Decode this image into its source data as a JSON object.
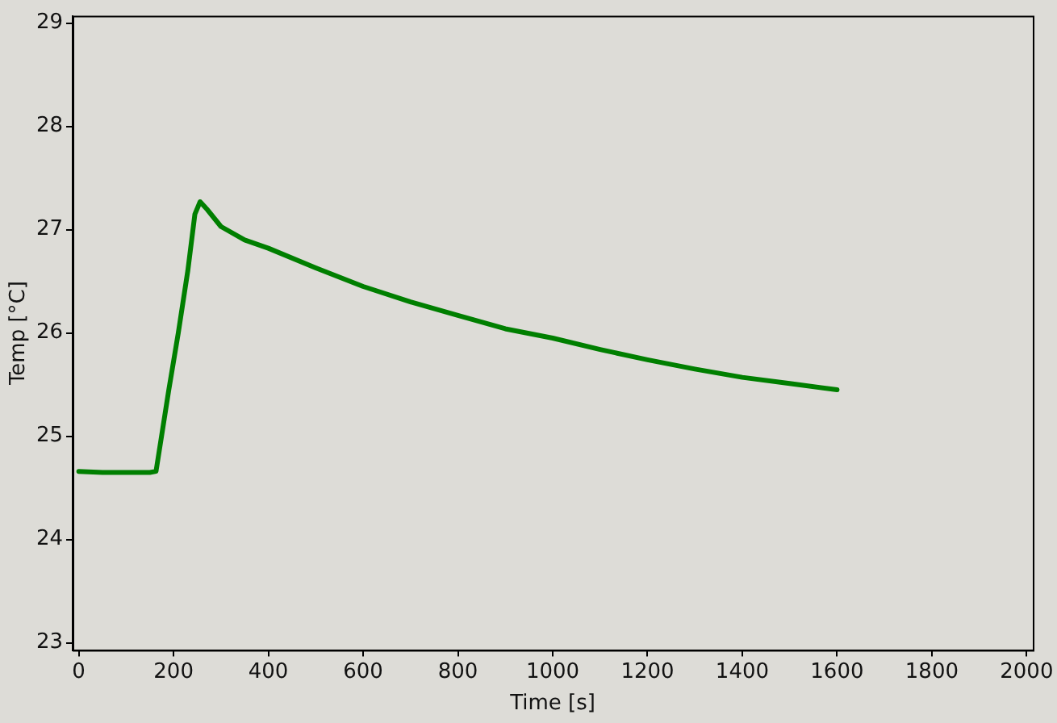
{
  "chart_data": {
    "type": "line",
    "xlabel": "Time [s]",
    "ylabel": "Temp [°C]",
    "x": [
      0,
      50,
      100,
      150,
      163,
      190,
      210,
      230,
      245,
      256,
      270,
      300,
      350,
      400,
      500,
      600,
      700,
      800,
      900,
      1000,
      1100,
      1200,
      1300,
      1400,
      1500,
      1600
    ],
    "series": [
      {
        "color": "#007f00",
        "values": [
          24.66,
          24.65,
          24.65,
          24.65,
          24.66,
          25.45,
          26.0,
          26.6,
          27.15,
          27.27,
          27.2,
          27.03,
          26.9,
          26.82,
          26.63,
          26.45,
          26.3,
          26.17,
          26.04,
          25.95,
          25.84,
          25.74,
          25.65,
          25.57,
          25.51,
          25.45
        ]
      }
    ],
    "xlim": [
      -13,
      2013
    ],
    "xticks": [
      0,
      200,
      400,
      600,
      800,
      1000,
      1200,
      1400,
      1600,
      1800,
      2000
    ],
    "ylim": [
      22.93,
      29.07
    ],
    "yticks": [
      23,
      24,
      25,
      26,
      27,
      28,
      29
    ],
    "grid": false,
    "legend": false,
    "marker": "none",
    "line_style": "solid"
  }
}
